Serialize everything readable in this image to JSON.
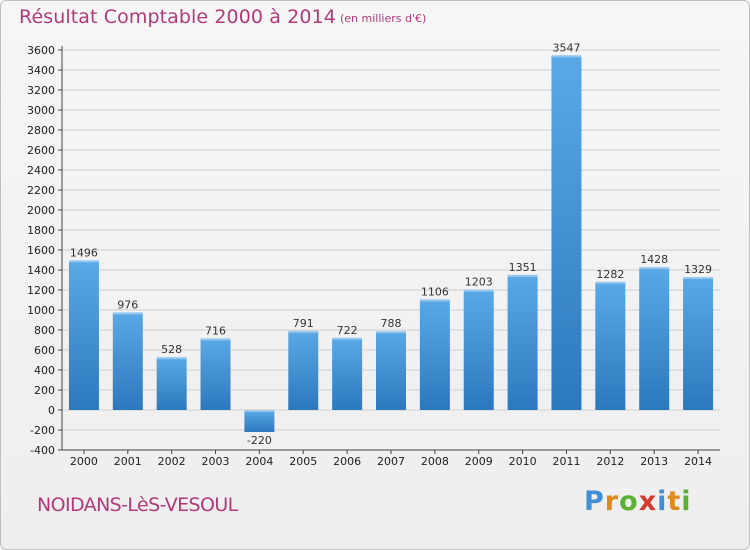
{
  "header": {
    "title": "Résultat Comptable 2000 à 2014",
    "subtitle": "(en milliers d'€)"
  },
  "footer": {
    "commune": "NOIDANS-LèS-VESOUL",
    "logo_letters": [
      "P",
      "r",
      "o",
      "x",
      "i",
      "t",
      "i"
    ]
  },
  "colors": {
    "title": "#b23a7a",
    "bar_light": "#5aa9e6",
    "bar_dark": "#2c78bd",
    "gridline": "#cfcfcf"
  },
  "chart_data": {
    "type": "bar",
    "categories": [
      "2000",
      "2001",
      "2002",
      "2003",
      "2004",
      "2005",
      "2006",
      "2007",
      "2008",
      "2009",
      "2010",
      "2011",
      "2012",
      "2013",
      "2014"
    ],
    "values": [
      1496,
      976,
      528,
      716,
      -220,
      791,
      722,
      788,
      1106,
      1203,
      1351,
      3547,
      1282,
      1428,
      1329
    ],
    "ylim": [
      -400,
      3600
    ],
    "ytick_step": 200,
    "grid": true,
    "legend": "none"
  }
}
